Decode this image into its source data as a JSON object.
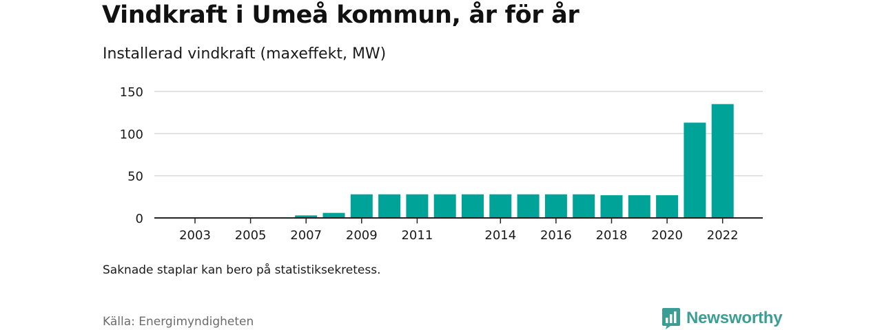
{
  "title": "Vindkraft i Umeå kommun, år för år",
  "subtitle": "Installerad vindkraft (maxeffekt, MW)",
  "note": "Saknade staplar kan bero på statistiksekretess.",
  "source": "Källa: Energimyndigheten",
  "brand": {
    "name": "Newsworthy",
    "logo_icon": "newsworthy-bar-chart-speech-bubble-icon",
    "color": "#3a9e95"
  },
  "colors": {
    "bar": "#00a398",
    "grid": "#d9d9d9",
    "axis": "#222222",
    "text": "#1a1a1a"
  },
  "chart_data": {
    "type": "bar",
    "title": "Vindkraft i Umeå kommun, år för år",
    "subtitle": "Installerad vindkraft (maxeffekt, MW)",
    "xlabel": "",
    "ylabel": "",
    "ylim": [
      0,
      150
    ],
    "yticks": [
      0,
      50,
      100,
      150
    ],
    "grid": true,
    "legend": "none",
    "categories": [
      "2002",
      "2003",
      "2004",
      "2005",
      "2006",
      "2007",
      "2008",
      "2009",
      "2010",
      "2011",
      "2012",
      "2013",
      "2014",
      "2015",
      "2016",
      "2017",
      "2018",
      "2019",
      "2020",
      "2021",
      "2022"
    ],
    "values": [
      0,
      0,
      0,
      0,
      0,
      3,
      6,
      28,
      28,
      28,
      28,
      28,
      28,
      28,
      28,
      28,
      27,
      27,
      27,
      113,
      135
    ],
    "xtick_labels": [
      "2003",
      "2005",
      "2007",
      "2009",
      "2011",
      "2014",
      "2016",
      "2018",
      "2020",
      "2022"
    ]
  }
}
